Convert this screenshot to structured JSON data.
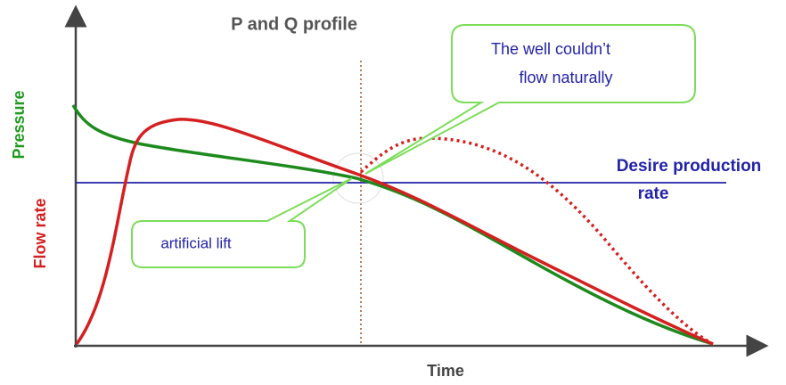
{
  "title": "P and Q profile",
  "axes": {
    "y_top": "Pressure",
    "y_bottom": "Flow rate",
    "x": "Time"
  },
  "desire_label": [
    "Desire production",
    "rate"
  ],
  "callout_top": [
    "The well couldn’t",
    "flow naturally"
  ],
  "callout_bottom": "artificial lift"
}
